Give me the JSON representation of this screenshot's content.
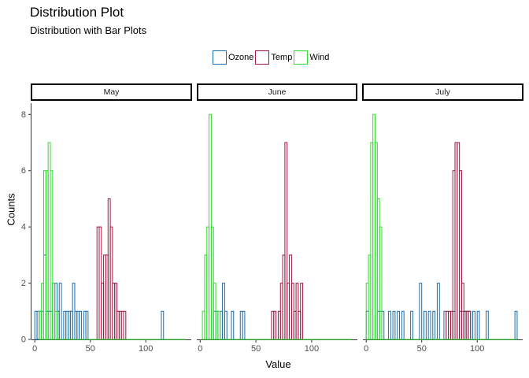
{
  "title": "Distribution Plot",
  "subtitle": "Distribution with Bar Plots",
  "chart_data": {
    "type": "histogram",
    "title": "Distribution Plot",
    "subtitle": "Distribution with Bar Plots",
    "xlabel": "Value",
    "ylabel": "Counts",
    "xlim": [
      -3,
      141
    ],
    "ylim": [
      0,
      8.4
    ],
    "x_ticks": [
      0,
      50,
      100
    ],
    "y_ticks": [
      0,
      2,
      4,
      6,
      8
    ],
    "binwidth": 2,
    "grid": false,
    "legend_position": "top",
    "series_colors": {
      "Ozone": "#1F6DA6",
      "Temp": "#A0153E",
      "Wind": "#2EDE2E"
    },
    "legend": [
      "Ozone",
      "Temp",
      "Wind"
    ],
    "panels": [
      {
        "label": "May",
        "series": [
          {
            "name": "Ozone",
            "bins": [
              [
                0,
                1
              ],
              [
                2,
                1
              ],
              [
                4,
                1
              ],
              [
                6,
                1
              ],
              [
                8,
                3
              ],
              [
                10,
                1
              ],
              [
                12,
                1
              ],
              [
                14,
                1
              ],
              [
                16,
                2
              ],
              [
                18,
                2
              ],
              [
                20,
                1
              ],
              [
                22,
                2
              ],
              [
                26,
                1
              ],
              [
                28,
                1
              ],
              [
                30,
                1
              ],
              [
                32,
                1
              ],
              [
                34,
                2
              ],
              [
                36,
                1
              ],
              [
                38,
                1
              ],
              [
                40,
                1
              ],
              [
                44,
                1
              ],
              [
                46,
                1
              ],
              [
                114,
                1
              ]
            ]
          },
          {
            "name": "Temp",
            "bins": [
              [
                56,
                4
              ],
              [
                58,
                4
              ],
              [
                60,
                2
              ],
              [
                62,
                3
              ],
              [
                64,
                3
              ],
              [
                66,
                5
              ],
              [
                68,
                4
              ],
              [
                70,
                2
              ],
              [
                72,
                2
              ],
              [
                74,
                1
              ],
              [
                76,
                1
              ],
              [
                78,
                1
              ],
              [
                80,
                1
              ]
            ]
          },
          {
            "name": "Wind",
            "bins": [
              [
                4,
                1
              ],
              [
                6,
                2
              ],
              [
                8,
                6
              ],
              [
                10,
                6
              ],
              [
                12,
                7
              ],
              [
                14,
                6
              ],
              [
                16,
                2
              ],
              [
                18,
                1
              ]
            ]
          }
        ]
      },
      {
        "label": "June",
        "series": [
          {
            "name": "Ozone",
            "bins": [
              [
                12,
                1
              ],
              [
                14,
                1
              ],
              [
                18,
                1
              ],
              [
                20,
                2
              ],
              [
                22,
                1
              ],
              [
                28,
                1
              ],
              [
                36,
                1
              ],
              [
                38,
                1
              ]
            ]
          },
          {
            "name": "Temp",
            "bins": [
              [
                64,
                1
              ],
              [
                66,
                1
              ],
              [
                70,
                1
              ],
              [
                72,
                2
              ],
              [
                74,
                3
              ],
              [
                76,
                7
              ],
              [
                78,
                2
              ],
              [
                80,
                3
              ],
              [
                82,
                2
              ],
              [
                84,
                1
              ],
              [
                86,
                2
              ],
              [
                88,
                1
              ],
              [
                90,
                2
              ]
            ]
          },
          {
            "name": "Wind",
            "bins": [
              [
                2,
                1
              ],
              [
                4,
                3
              ],
              [
                6,
                4
              ],
              [
                8,
                8
              ],
              [
                10,
                4
              ],
              [
                12,
                2
              ],
              [
                14,
                1
              ],
              [
                16,
                1
              ]
            ]
          }
        ]
      },
      {
        "label": "July",
        "series": [
          {
            "name": "Ozone",
            "bins": [
              [
                0,
                1
              ],
              [
                10,
                1
              ],
              [
                12,
                1
              ],
              [
                14,
                1
              ],
              [
                20,
                1
              ],
              [
                24,
                1
              ],
              [
                28,
                1
              ],
              [
                32,
                1
              ],
              [
                40,
                1
              ],
              [
                48,
                2
              ],
              [
                52,
                1
              ],
              [
                56,
                1
              ],
              [
                60,
                1
              ],
              [
                64,
                2
              ],
              [
                70,
                1
              ],
              [
                78,
                1
              ],
              [
                84,
                1
              ],
              [
                86,
                1
              ],
              [
                88,
                1
              ],
              [
                90,
                1
              ],
              [
                92,
                1
              ],
              [
                96,
                1
              ],
              [
                100,
                1
              ],
              [
                108,
                1
              ],
              [
                134,
                1
              ]
            ]
          },
          {
            "name": "Temp",
            "bins": [
              [
                72,
                1
              ],
              [
                74,
                1
              ],
              [
                76,
                1
              ],
              [
                78,
                6
              ],
              [
                80,
                7
              ],
              [
                82,
                7
              ],
              [
                84,
                6
              ],
              [
                86,
                2
              ],
              [
                88,
                1
              ],
              [
                90,
                1
              ],
              [
                92,
                1
              ]
            ]
          },
          {
            "name": "Wind",
            "bins": [
              [
                0,
                2
              ],
              [
                2,
                3
              ],
              [
                4,
                7
              ],
              [
                6,
                8
              ],
              [
                8,
                7
              ],
              [
                10,
                5
              ],
              [
                12,
                4
              ]
            ]
          }
        ]
      }
    ]
  }
}
